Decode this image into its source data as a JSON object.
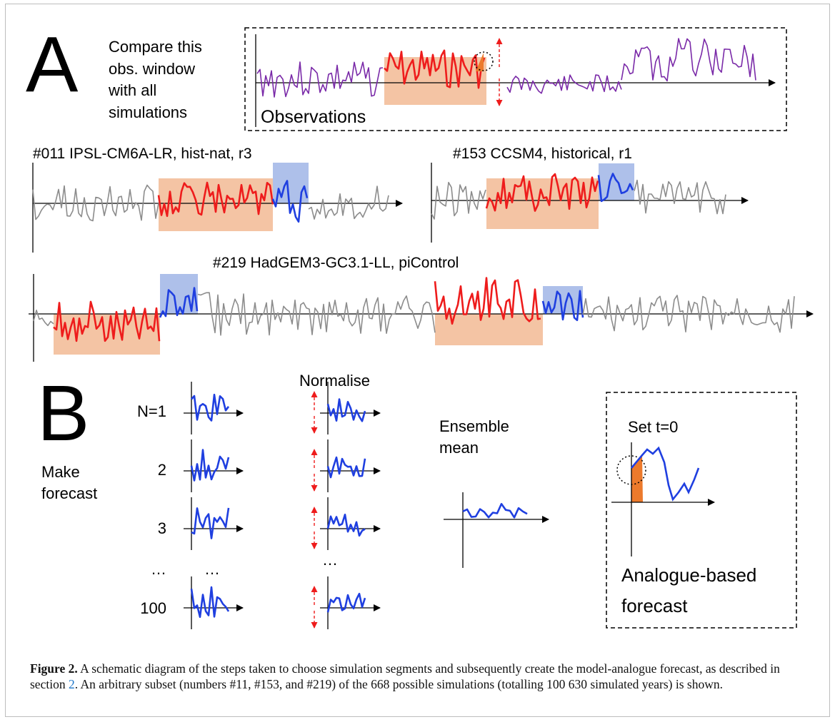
{
  "figure": {
    "panel_a": {
      "letter": "A",
      "instruction": [
        "Compare this",
        "obs. window",
        "with all",
        "simulations"
      ],
      "observations_label": "Observations",
      "simulations": [
        {
          "label": "#011 IPSL-CM6A-LR, hist-nat, r3"
        },
        {
          "label": "#153 CCSM4, historical, r1"
        },
        {
          "label": "#219 HadGEM3-GC3.1-LL, piControl"
        }
      ]
    },
    "panel_b": {
      "letter": "B",
      "make_forecast": [
        "Make",
        "forecast"
      ],
      "members": [
        "N=1",
        "2",
        "3",
        "…",
        "100"
      ],
      "ellipsis": "…",
      "normalise_label": "Normalise",
      "ensemble_mean": [
        "Ensemble",
        "mean"
      ],
      "set_t0": "Set t=0",
      "analogue_forecast": [
        "Analogue-based",
        "forecast"
      ]
    },
    "colors": {
      "observations": "#7a2aa8",
      "window": "#ee1c1c",
      "window_fill": "#f4c4a4",
      "forecast": "#1f3fe0",
      "forecast_fill": "#aec0ea",
      "background_series": "#8c8c8c",
      "arrow": "#ee1c1c",
      "t0_fill": "#ec7a2c"
    }
  },
  "caption": {
    "label": "Figure 2.",
    "text_1": " A schematic diagram of the steps taken to choose simulation segments and subsequently create the model-analogue forecast, as described in section ",
    "section_ref": "2",
    "text_2": ". An arbitrary subset (numbers #11, #153, and #219) of the 668 possible simulations (totalling 100 630 simulated years) is shown."
  }
}
